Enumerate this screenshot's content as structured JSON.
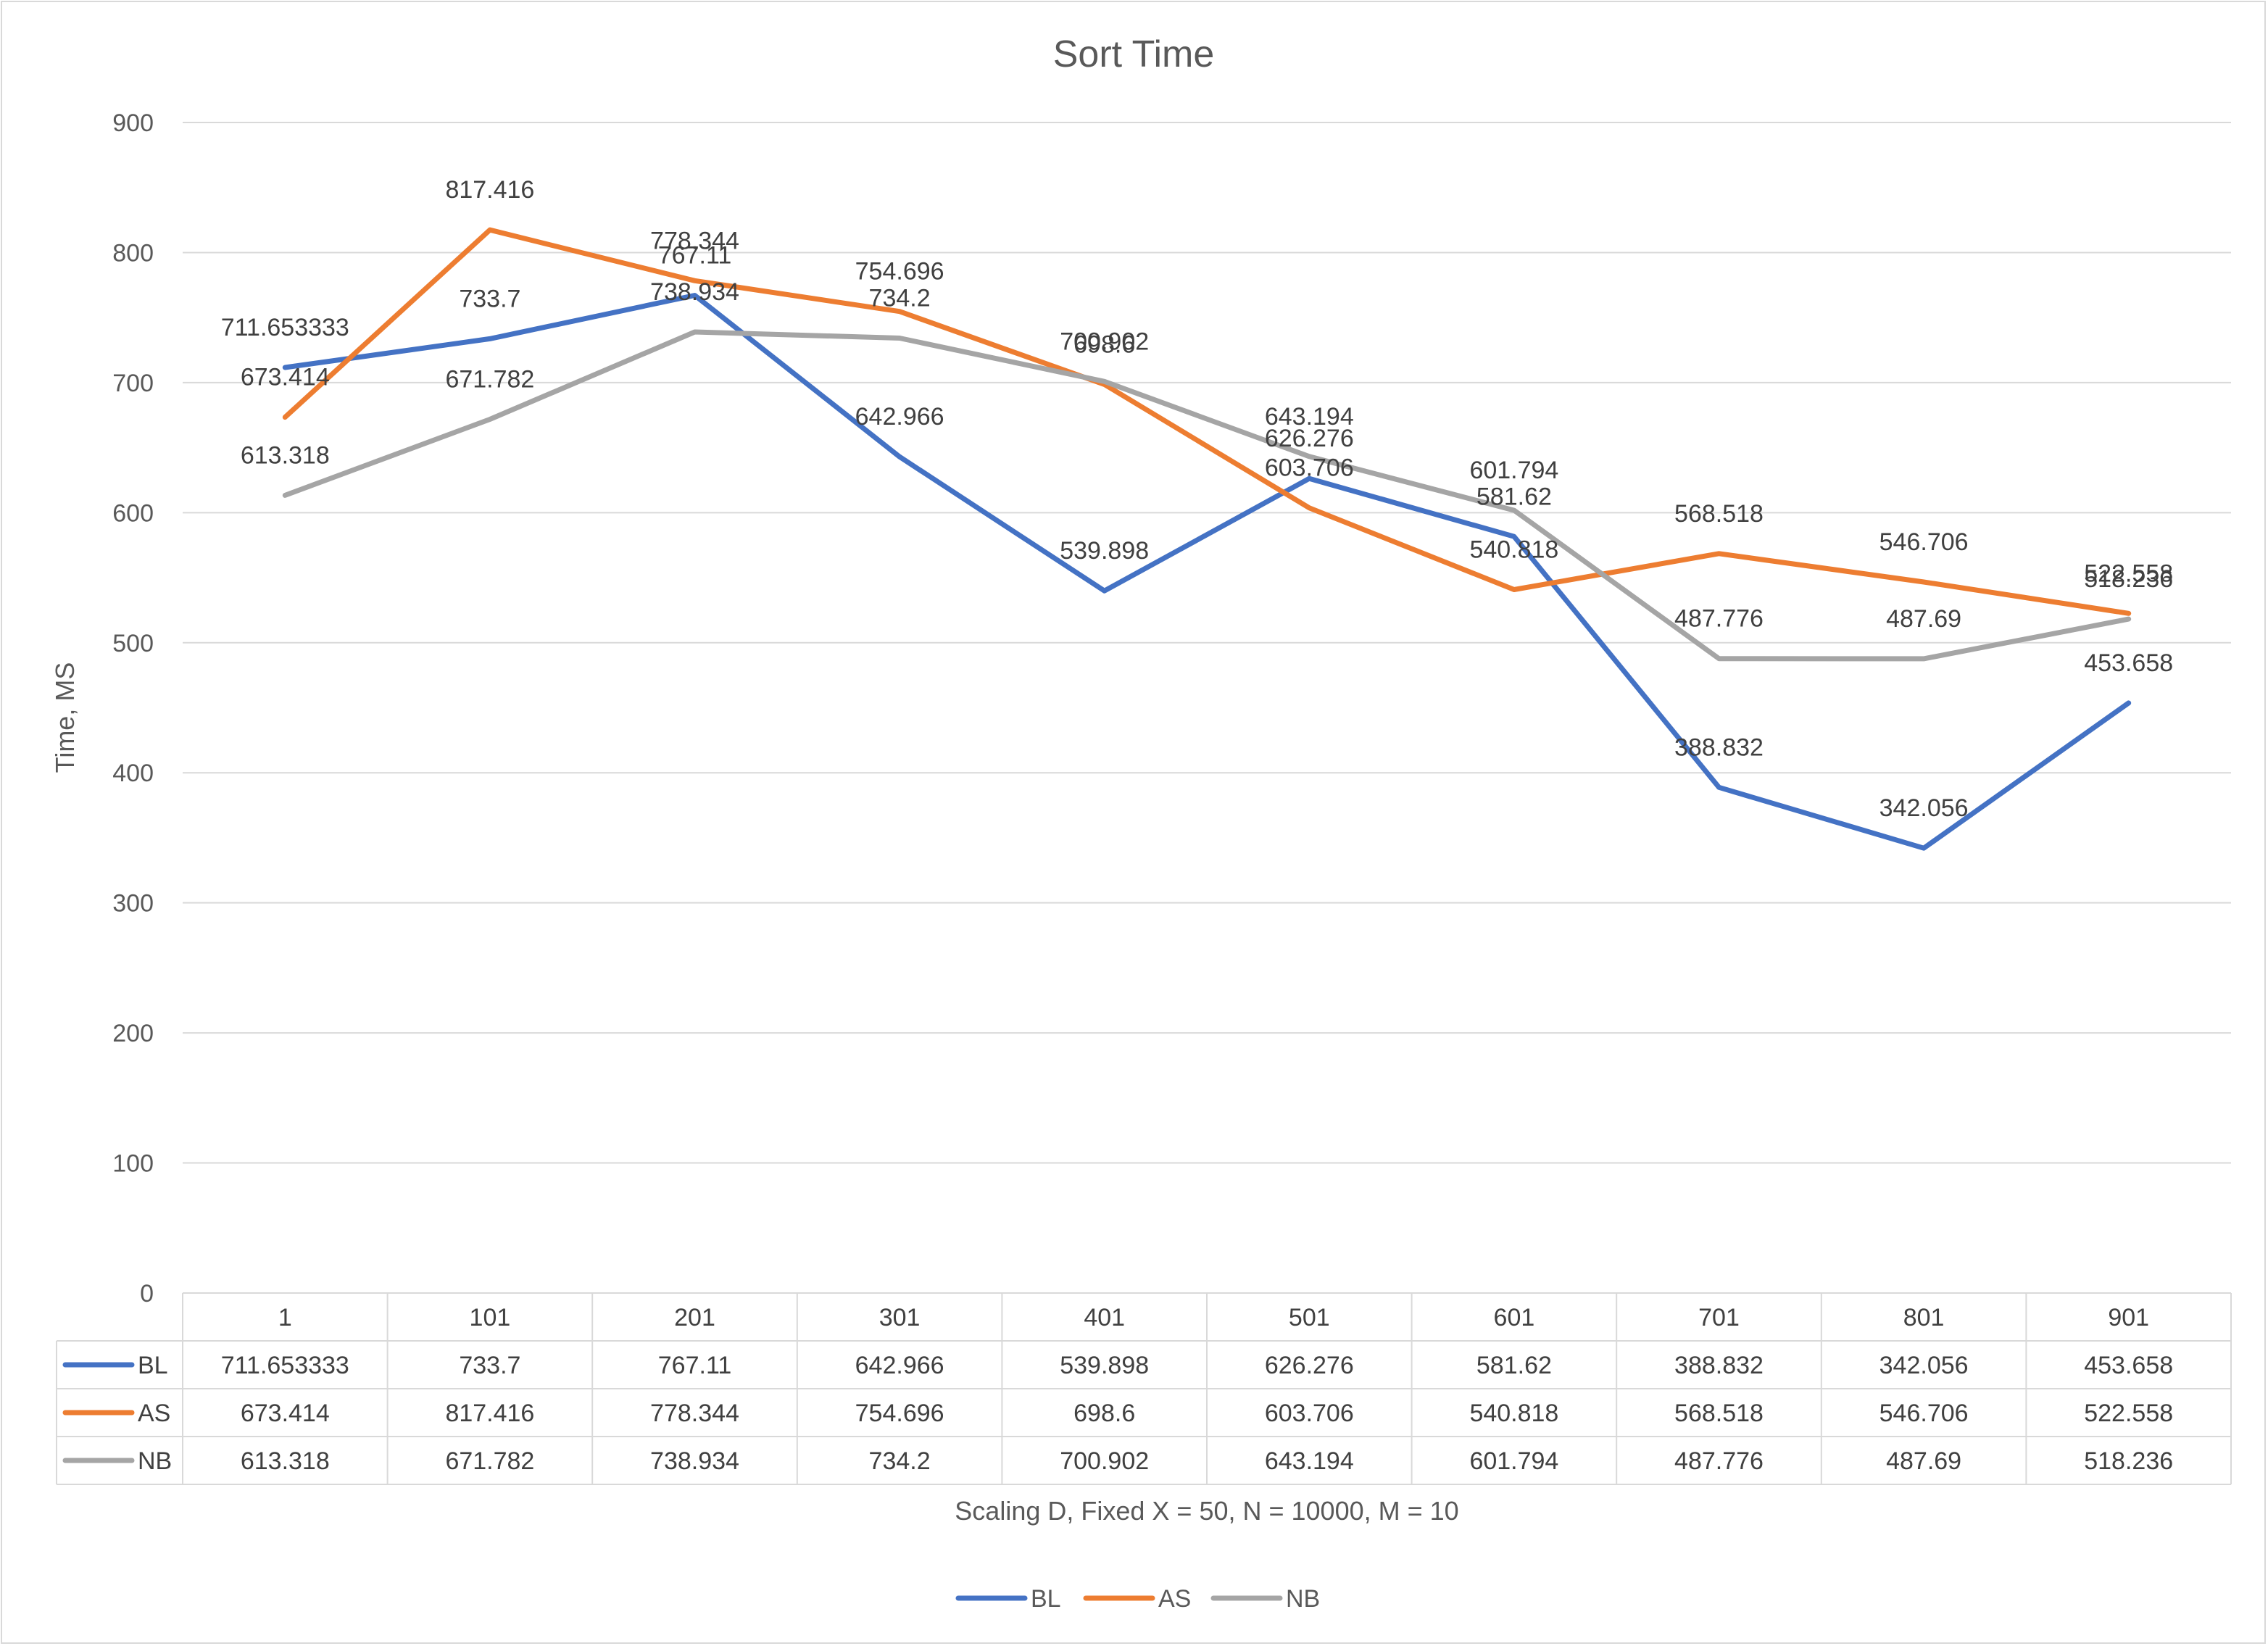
{
  "chart_data": {
    "type": "line",
    "title": "Sort Time",
    "xlabel": "Scaling D, Fixed X = 50, N = 10000, M = 10",
    "ylabel": "Time, MS",
    "ylim": [
      0,
      900
    ],
    "yticks": [
      0,
      100,
      200,
      300,
      400,
      500,
      600,
      700,
      800,
      900
    ],
    "categories": [
      "1",
      "101",
      "201",
      "301",
      "401",
      "501",
      "601",
      "701",
      "801",
      "901"
    ],
    "grid": true,
    "legend_position": "bottom",
    "data_table": true,
    "series": [
      {
        "name": "BL",
        "color": "#4472C4",
        "values": [
          711.653333,
          733.7,
          767.11,
          642.966,
          539.898,
          626.276,
          581.62,
          388.832,
          342.056,
          453.658
        ],
        "labels": [
          "711.653333",
          "733.7",
          "767.11",
          "642.966",
          "539.898",
          "626.276",
          "581.62",
          "388.832",
          "342.056",
          "453.658"
        ]
      },
      {
        "name": "AS",
        "color": "#ED7D31",
        "values": [
          673.414,
          817.416,
          778.344,
          754.696,
          698.6,
          603.706,
          540.818,
          568.518,
          546.706,
          522.558
        ],
        "labels": [
          "673.414",
          "817.416",
          "778.344",
          "754.696",
          "698.6",
          "603.706",
          "540.818",
          "568.518",
          "546.706",
          "522.558"
        ]
      },
      {
        "name": "NB",
        "color": "#A5A5A5",
        "values": [
          613.318,
          671.782,
          738.934,
          734.2,
          700.902,
          643.194,
          601.794,
          487.776,
          487.69,
          518.236
        ],
        "labels": [
          "613.318",
          "671.782",
          "738.934",
          "734.2",
          "700.902",
          "643.194",
          "601.794",
          "487.776",
          "487.69",
          "518.236"
        ]
      }
    ]
  }
}
